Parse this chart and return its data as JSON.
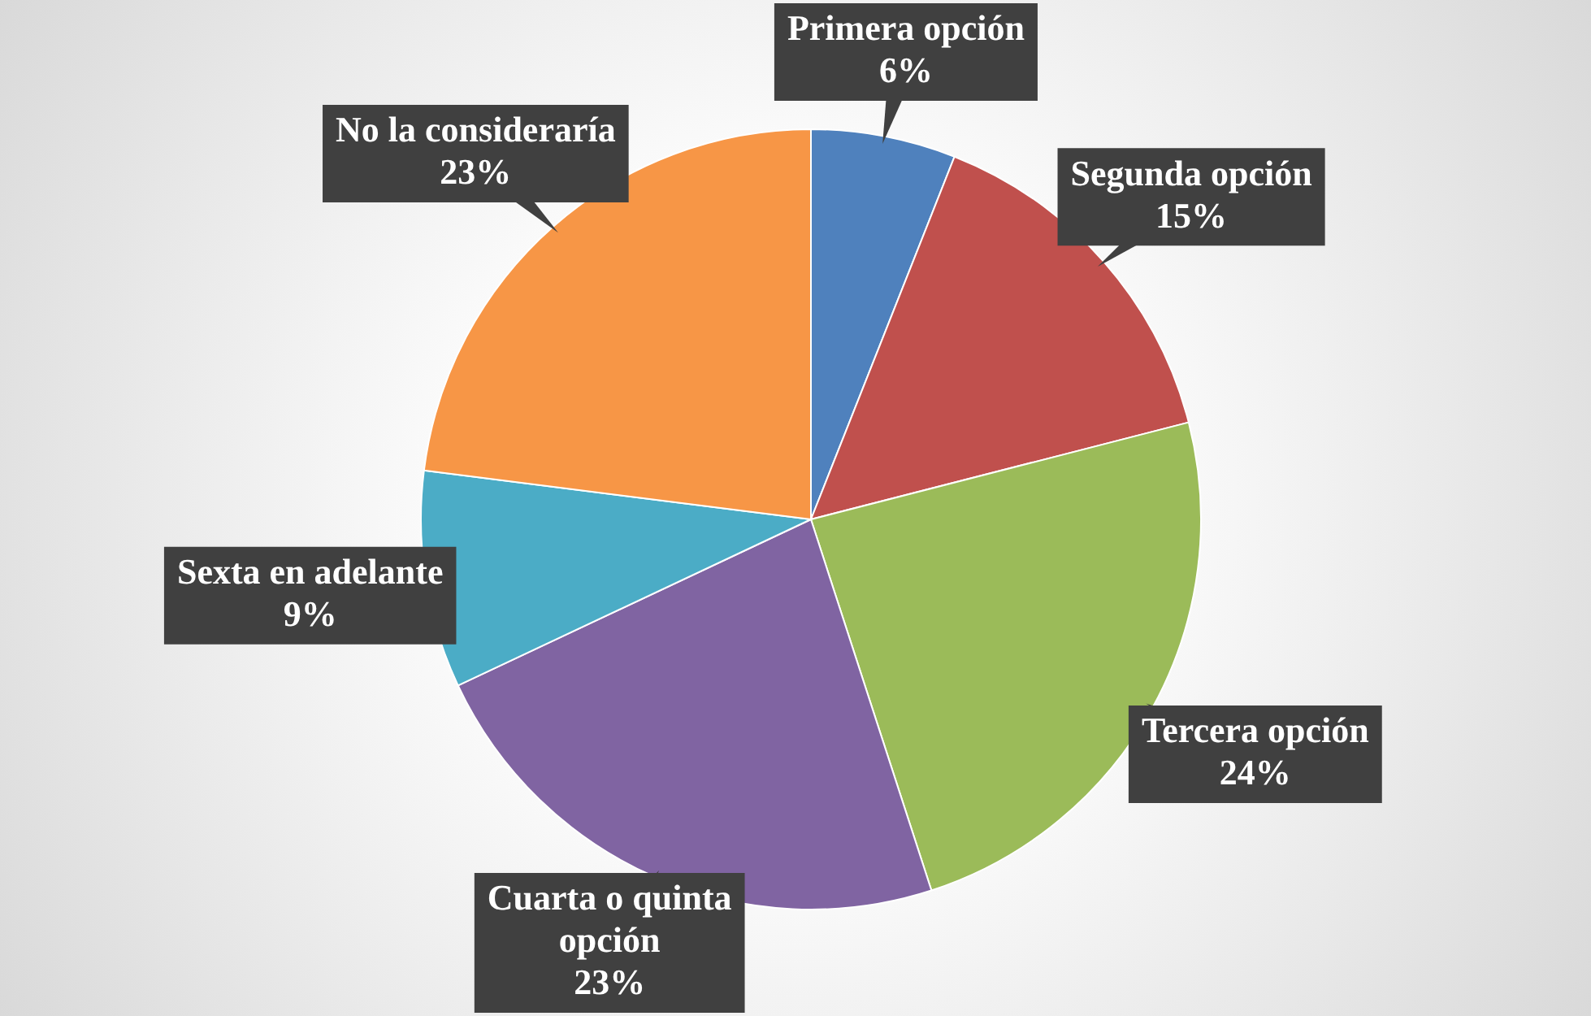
{
  "chart_data": {
    "type": "pie",
    "categories": [
      "Primera opción",
      "Segunda opción",
      "Tercera opción",
      "Cuarta o quinta opción",
      "Sexta en adelante",
      "No la consideraría"
    ],
    "values": [
      6,
      15,
      24,
      23,
      9,
      23
    ],
    "value_labels": [
      "6%",
      "15%",
      "24%",
      "23%",
      "9%",
      "23%"
    ],
    "colors": [
      "#4f81bd",
      "#c0504d",
      "#9bbb59",
      "#8064a2",
      "#4bacc6",
      "#f79646"
    ],
    "legend": false
  }
}
